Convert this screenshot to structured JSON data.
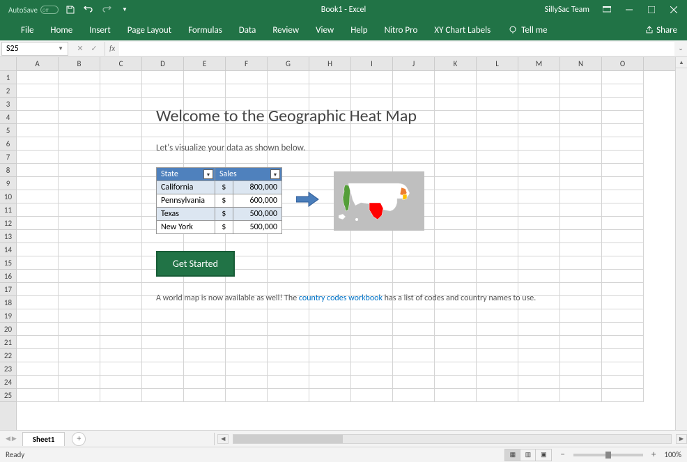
{
  "titlebar": {
    "autosave_label": "AutoSave",
    "autosave_state": "Off",
    "title": "Book1 - Excel",
    "user": "SillySac Team"
  },
  "ribbon": {
    "tabs": [
      "File",
      "Home",
      "Insert",
      "Page Layout",
      "Formulas",
      "Data",
      "Review",
      "View",
      "Help",
      "Nitro Pro",
      "XY Chart Labels"
    ],
    "tellme": "Tell me",
    "share": "Share"
  },
  "formula": {
    "name_box": "S25",
    "fx": "fx",
    "value": ""
  },
  "grid": {
    "columns": [
      "A",
      "B",
      "C",
      "D",
      "E",
      "F",
      "G",
      "H",
      "I",
      "J",
      "K",
      "L",
      "M",
      "N",
      "O"
    ],
    "rows": 25
  },
  "welcome": {
    "title": "Welcome to the Geographic Heat Map",
    "subtitle": "Let's visualize your data as shown below.",
    "table": {
      "headers": [
        "State",
        "Sales"
      ],
      "rows": [
        {
          "state": "California",
          "cur": "$",
          "val": "800,000"
        },
        {
          "state": "Pennsylvania",
          "cur": "$",
          "val": "600,000"
        },
        {
          "state": "Texas",
          "cur": "$",
          "val": "500,000"
        },
        {
          "state": "New York",
          "cur": "$",
          "val": "500,000"
        }
      ]
    },
    "button": "Get Started",
    "note_pre": "A world map is now available as well! The ",
    "note_link": "country codes workbook",
    "note_post": " has a list of codes and country names to use."
  },
  "sheets": {
    "active": "Sheet1"
  },
  "status": {
    "ready": "Ready",
    "zoom": "100%"
  },
  "colors": {
    "brand": "#217346",
    "accent": "#4f81bd",
    "map_bg": "#bfbfbf",
    "map_green": "#549e39",
    "map_red": "#ff0000",
    "map_orange": "#ed7d31",
    "map_yellow": "#ffc000"
  }
}
